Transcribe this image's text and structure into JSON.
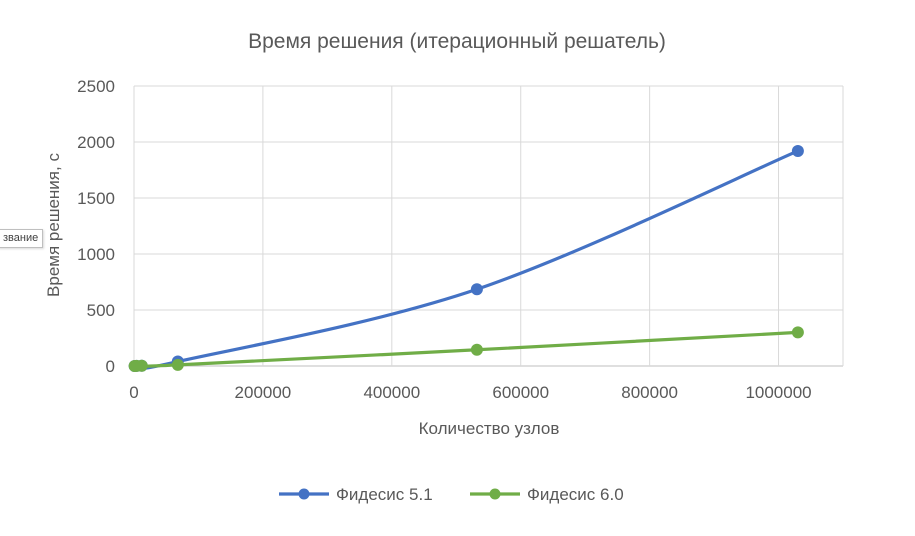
{
  "chart_data": {
    "type": "scatter",
    "title": "Время решения (итерационный решатель)",
    "xlabel": "Количество узлов",
    "ylabel": "Время решения, с",
    "xlim": [
      0,
      1100000
    ],
    "ylim": [
      0,
      2500
    ],
    "xticks": [
      0,
      200000,
      400000,
      600000,
      800000,
      1000000
    ],
    "yticks": [
      0,
      500,
      1000,
      1500,
      2000,
      2500
    ],
    "grid": true,
    "smooth_lines": true,
    "legend_position": "bottom",
    "series": [
      {
        "name": "Фидесис 5.1",
        "color": "#4472C4",
        "x": [
          1000,
          4000,
          12000,
          68000,
          532000,
          1030000
        ],
        "y": [
          0,
          1,
          2,
          40,
          685,
          1920
        ]
      },
      {
        "name": "Фидесис 6.0",
        "color": "#70AD47",
        "x": [
          1000,
          4000,
          12000,
          68000,
          532000,
          1030000
        ],
        "y": [
          0,
          1,
          2,
          10,
          145,
          300
        ]
      }
    ]
  },
  "overlay": {
    "tooltip_fragment": "звание"
  }
}
